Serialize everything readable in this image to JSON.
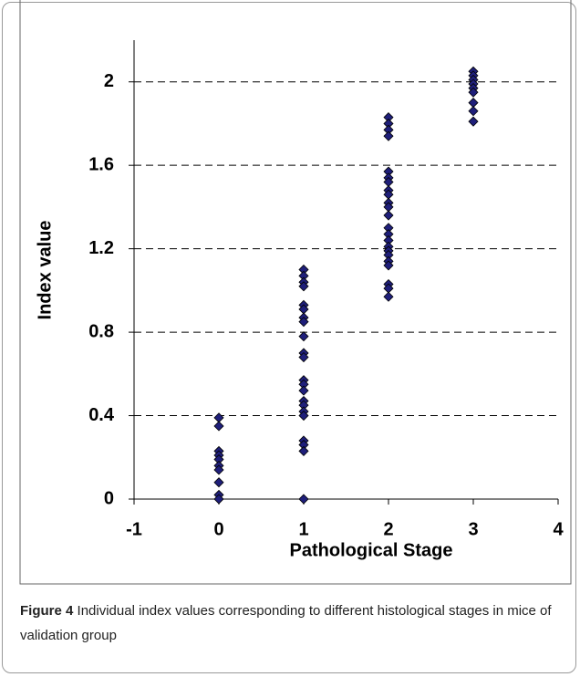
{
  "chart_data": {
    "type": "scatter",
    "xlabel": "Pathological Stage",
    "ylabel": "Index value",
    "x": [
      0,
      0,
      0,
      0,
      0,
      0,
      0,
      0,
      0,
      0,
      1,
      1,
      1,
      1,
      1,
      1,
      1,
      1,
      1,
      1,
      1,
      1,
      1,
      1,
      1,
      1,
      1,
      1,
      1,
      1,
      1,
      1,
      2,
      2,
      2,
      2,
      2,
      2,
      2,
      2,
      2,
      2,
      2,
      2,
      2,
      2,
      2,
      2,
      2,
      2,
      2,
      2,
      2,
      2,
      2,
      3,
      3,
      3,
      3,
      3,
      3,
      3,
      3,
      3
    ],
    "y": [
      0.39,
      0.35,
      0.23,
      0.21,
      0.19,
      0.16,
      0.14,
      0.08,
      0.02,
      0,
      1.1,
      1.07,
      1.04,
      1.02,
      0.93,
      0.91,
      0.87,
      0.85,
      0.78,
      0.7,
      0.68,
      0.57,
      0.55,
      0.52,
      0.47,
      0.45,
      0.42,
      0.4,
      0.28,
      0.26,
      0.23,
      0,
      1.83,
      1.8,
      1.77,
      1.74,
      1.57,
      1.54,
      1.52,
      1.48,
      1.46,
      1.42,
      1.4,
      1.36,
      1.3,
      1.27,
      1.24,
      1.21,
      1.19,
      1.17,
      1.14,
      1.12,
      1.03,
      1.01,
      0.97,
      2.05,
      2.03,
      2.01,
      1.99,
      1.97,
      1.95,
      1.9,
      1.86,
      1.81
    ],
    "color": "#1f1f7a",
    "xlim": [
      -1,
      4
    ],
    "xticks": [
      -1,
      0,
      1,
      2,
      3,
      4
    ],
    "ylim": [
      0,
      2.2
    ],
    "yticks": [
      0,
      0.4,
      0.8,
      1.2,
      1.6,
      2
    ],
    "grid": true
  },
  "caption": {
    "label": "Figure 4",
    "text": "Individual index values corresponding to different histological stages in mice of validation group"
  }
}
